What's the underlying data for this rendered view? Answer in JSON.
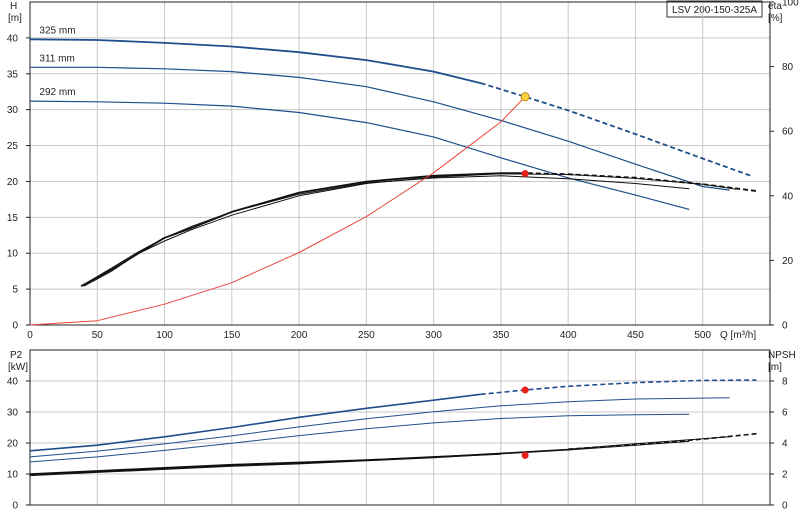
{
  "pump_model": "LSV 200-150-325A",
  "colors": {
    "curve_blue": "#1f4e8c",
    "curve_black": "#111111",
    "system_curve": "#e8453c",
    "duty_point_fill": "#ffd23f",
    "duty_point_stroke": "#b8860b",
    "marker_red": "#e8211b",
    "grid": "#c8c8c8"
  },
  "chart_data": [
    {
      "type": "line",
      "title": "",
      "left_axis": {
        "label_line1": "H",
        "label_line2": "[m]",
        "ylim": [
          0,
          45
        ],
        "ticks": [
          0,
          5,
          10,
          15,
          20,
          25,
          30,
          35,
          40
        ],
        "tick_labels": [
          "0",
          "5",
          "10",
          "15",
          "20",
          "25",
          "30",
          "35",
          "40"
        ]
      },
      "right_axis": {
        "label_line1": "eta",
        "label_line2": "[%]",
        "ylim": [
          0,
          100
        ],
        "ticks": [
          0,
          20,
          40,
          60,
          80,
          100
        ],
        "tick_labels": [
          "0",
          "20",
          "40",
          "60",
          "80",
          "100"
        ]
      },
      "x_axis": {
        "label": "Q [m³/h]",
        "xlim": [
          0,
          550
        ],
        "ticks": [
          0,
          50,
          100,
          150,
          200,
          250,
          300,
          350,
          400,
          450,
          500
        ],
        "tick_labels": [
          "0",
          "50",
          "100",
          "150",
          "200",
          "250",
          "300",
          "350",
          "400",
          "450",
          "500"
        ]
      },
      "grid": true,
      "series": [
        {
          "name": "325 mm",
          "axis": "left",
          "color": "#1f4e8c",
          "width": 1.8,
          "dash_from": 335,
          "x": [
            0,
            50,
            100,
            150,
            200,
            250,
            300,
            335,
            368,
            400,
            450,
            500,
            537
          ],
          "y": [
            39.8,
            39.7,
            39.3,
            38.8,
            38.0,
            36.9,
            35.3,
            33.7,
            31.8,
            29.9,
            26.6,
            23.2,
            20.7
          ]
        },
        {
          "name": "311 mm",
          "axis": "left",
          "color": "#1f4e8c",
          "width": 1.2,
          "x": [
            0,
            50,
            100,
            150,
            200,
            250,
            300,
            350,
            400,
            450,
            500,
            520
          ],
          "y": [
            35.9,
            35.9,
            35.7,
            35.3,
            34.5,
            33.2,
            31.1,
            28.5,
            25.6,
            22.4,
            19.3,
            18.8
          ]
        },
        {
          "name": "292 mm",
          "axis": "left",
          "color": "#1f4e8c",
          "width": 1.2,
          "x": [
            0,
            50,
            100,
            150,
            200,
            250,
            300,
            350,
            400,
            450,
            490
          ],
          "y": [
            31.2,
            31.1,
            30.9,
            30.5,
            29.6,
            28.2,
            26.2,
            23.3,
            20.5,
            18.1,
            16.1
          ]
        },
        {
          "name": "",
          "axis": "right",
          "color": "#111111",
          "width": 1.8,
          "dash_from": 370,
          "x": [
            38,
            60,
            80,
            100,
            120,
            150,
            200,
            250,
            300,
            350,
            370,
            400,
            450,
            500,
            540
          ],
          "y": [
            12,
            17,
            22,
            27,
            30,
            35,
            41,
            44.4,
            46.2,
            47,
            47,
            46.7,
            45.6,
            43.6,
            41.5
          ]
        },
        {
          "name": "",
          "axis": "right",
          "color": "#111111",
          "width": 1.0,
          "x": [
            40,
            60,
            80,
            100,
            120,
            150,
            200,
            250,
            300,
            350,
            400,
            450,
            490
          ],
          "y": [
            12.5,
            17.5,
            22.5,
            27,
            30.5,
            35,
            40.5,
            44,
            45.5,
            46.2,
            45.3,
            43.8,
            42.2
          ]
        },
        {
          "name": "",
          "axis": "right",
          "color": "#111111",
          "width": 1.0,
          "x": [
            40,
            60,
            80,
            100,
            120,
            150,
            200,
            250,
            300,
            350,
            400,
            450,
            500,
            525
          ],
          "y": [
            12,
            16.5,
            22,
            26,
            29.5,
            34,
            40,
            43.8,
            45.8,
            46.8,
            46.6,
            45.4,
            43.6,
            42
          ]
        },
        {
          "name": "",
          "axis": "left",
          "color": "#e8453c",
          "width": 1.0,
          "x": [
            0,
            50,
            100,
            150,
            200,
            250,
            300,
            350,
            368
          ],
          "y": [
            0,
            0.6,
            2.9,
            5.9,
            10.1,
            15.1,
            21.2,
            28.3,
            31.8
          ]
        }
      ],
      "markers": [
        {
          "x": 368,
          "y": 31.8,
          "axis": "left",
          "kind": "duty_point"
        },
        {
          "x": 368,
          "y": 21.1,
          "axis": "left",
          "kind": "red_point"
        }
      ],
      "curve_labels": [
        "325 mm",
        "311 mm",
        "292 mm"
      ]
    },
    {
      "type": "line",
      "title": "",
      "left_axis": {
        "label_line1": "P2",
        "label_line2": "[kW]",
        "ylim": [
          0,
          50
        ],
        "ticks": [
          0,
          10,
          20,
          30,
          40
        ],
        "tick_labels": [
          "0",
          "10",
          "20",
          "30",
          "40"
        ]
      },
      "right_axis": {
        "label_line1": "NPSH",
        "label_line2": "[m]",
        "ylim": [
          0,
          10
        ],
        "ticks": [
          0,
          2,
          4,
          6,
          8
        ],
        "tick_labels": [
          "0",
          "2",
          "4",
          "6",
          "8"
        ]
      },
      "x_axis": {
        "label": "",
        "xlim": [
          0,
          550
        ],
        "ticks": [
          0,
          50,
          100,
          150,
          200,
          250,
          300,
          350,
          400,
          450,
          500
        ],
        "tick_labels": []
      },
      "grid": true,
      "series": [
        {
          "name": "",
          "axis": "left",
          "color": "#1f4e8c",
          "width": 1.6,
          "dash_from": 335,
          "x": [
            0,
            50,
            100,
            150,
            200,
            250,
            300,
            335,
            368,
            400,
            450,
            500,
            540
          ],
          "y": [
            17.5,
            19.3,
            22.0,
            25.0,
            28.3,
            31.2,
            33.8,
            35.7,
            37.1,
            38.3,
            39.5,
            40.2,
            40.3
          ]
        },
        {
          "name": "",
          "axis": "left",
          "color": "#1f4e8c",
          "width": 1.0,
          "x": [
            0,
            50,
            100,
            150,
            200,
            250,
            300,
            350,
            400,
            450,
            520
          ],
          "y": [
            15.5,
            17.4,
            19.7,
            22.3,
            25.2,
            27.8,
            30.1,
            32.0,
            33.3,
            34.2,
            34.6
          ]
        },
        {
          "name": "",
          "axis": "left",
          "color": "#1f4e8c",
          "width": 1.0,
          "x": [
            0,
            50,
            100,
            150,
            200,
            250,
            300,
            350,
            400,
            450,
            490
          ],
          "y": [
            13.9,
            15.5,
            17.6,
            19.9,
            22.4,
            24.6,
            26.5,
            27.9,
            28.8,
            29.1,
            29.3
          ]
        },
        {
          "name": "",
          "axis": "right",
          "color": "#111111",
          "width": 1.6,
          "dash_from": 370,
          "x": [
            0,
            50,
            100,
            150,
            200,
            250,
            300,
            350,
            400,
            450,
            500,
            540
          ],
          "y": [
            2.0,
            2.2,
            2.4,
            2.6,
            2.75,
            2.9,
            3.1,
            3.3,
            3.6,
            3.9,
            4.25,
            4.6
          ]
        },
        {
          "name": "",
          "axis": "right",
          "color": "#111111",
          "width": 1.0,
          "x": [
            0,
            50,
            100,
            150,
            200,
            250,
            300,
            350,
            400,
            450,
            490
          ],
          "y": [
            1.9,
            2.1,
            2.3,
            2.5,
            2.65,
            2.85,
            3.05,
            3.3,
            3.55,
            3.85,
            4.1
          ]
        },
        {
          "name": "",
          "axis": "right",
          "color": "#111111",
          "width": 1.0,
          "x": [
            0,
            50,
            100,
            150,
            200,
            250,
            300,
            350,
            400,
            450,
            520
          ],
          "y": [
            1.95,
            2.15,
            2.35,
            2.55,
            2.7,
            2.9,
            3.1,
            3.35,
            3.6,
            3.95,
            4.4
          ]
        }
      ],
      "markers": [
        {
          "x": 368,
          "y": 37.1,
          "axis": "left",
          "kind": "red_point"
        },
        {
          "x": 368,
          "y": 16.0,
          "axis": "left",
          "kind": "red_point"
        }
      ]
    }
  ]
}
